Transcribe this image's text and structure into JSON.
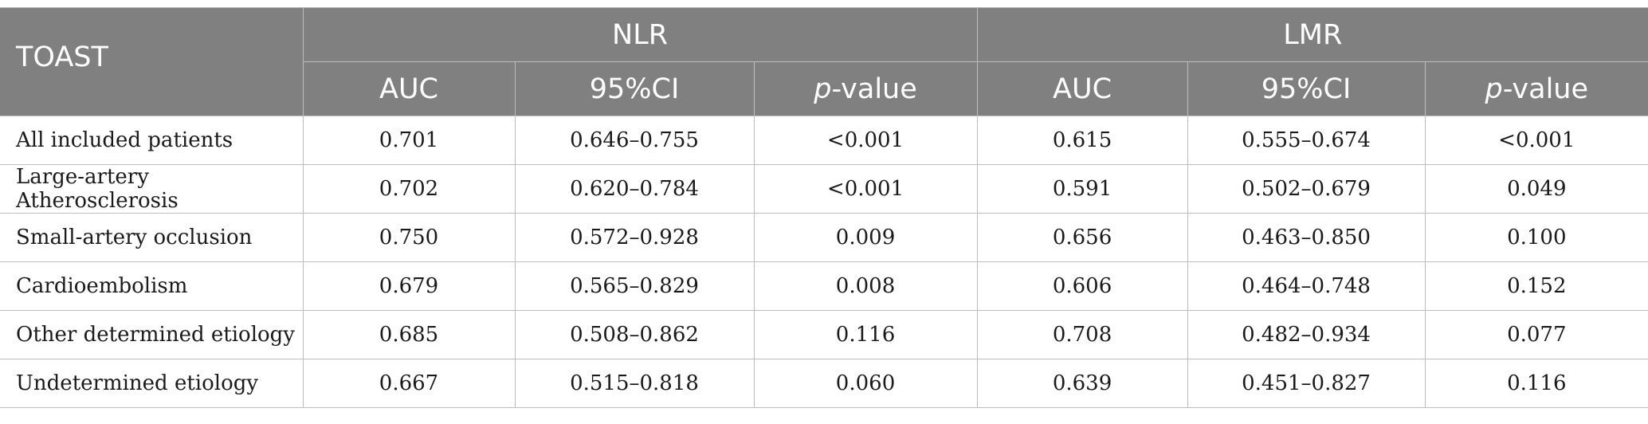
{
  "header": {
    "row_label_header": "TOAST",
    "groups": [
      {
        "label": "NLR"
      },
      {
        "label": "LMR"
      }
    ],
    "sub_columns": {
      "auc": "AUC",
      "ci": "95%CI",
      "p_prefix": "p",
      "p_suffix": "-value"
    }
  },
  "rows": [
    {
      "label": "All included patients",
      "nlr_auc": "0.701",
      "nlr_ci": "0.646–0.755",
      "nlr_p": "<0.001",
      "lmr_auc": "0.615",
      "lmr_ci": "0.555–0.674",
      "lmr_p": "<0.001"
    },
    {
      "label": "Large-artery Atherosclerosis",
      "nlr_auc": "0.702",
      "nlr_ci": "0.620–0.784",
      "nlr_p": "<0.001",
      "lmr_auc": "0.591",
      "lmr_ci": "0.502–0.679",
      "lmr_p": "0.049"
    },
    {
      "label": "Small-artery occlusion",
      "nlr_auc": "0.750",
      "nlr_ci": "0.572–0.928",
      "nlr_p": "0.009",
      "lmr_auc": "0.656",
      "lmr_ci": "0.463–0.850",
      "lmr_p": "0.100"
    },
    {
      "label": "Cardioembolism",
      "nlr_auc": "0.679",
      "nlr_ci": "0.565–0.829",
      "nlr_p": "0.008",
      "lmr_auc": "0.606",
      "lmr_ci": "0.464–0.748",
      "lmr_p": "0.152"
    },
    {
      "label": "Other determined etiology",
      "nlr_auc": "0.685",
      "nlr_ci": "0.508–0.862",
      "nlr_p": "0.116",
      "lmr_auc": "0.708",
      "lmr_ci": "0.482–0.934",
      "lmr_p": "0.077"
    },
    {
      "label": "Undetermined etiology",
      "nlr_auc": "0.667",
      "nlr_ci": "0.515–0.818",
      "nlr_p": "0.060",
      "lmr_auc": "0.639",
      "lmr_ci": "0.451–0.827",
      "lmr_p": "0.116"
    }
  ],
  "colors": {
    "header_bg": "#808080",
    "header_text": "#ffffff",
    "border": "#bdbdbd",
    "body_text": "#1a1a1a"
  }
}
